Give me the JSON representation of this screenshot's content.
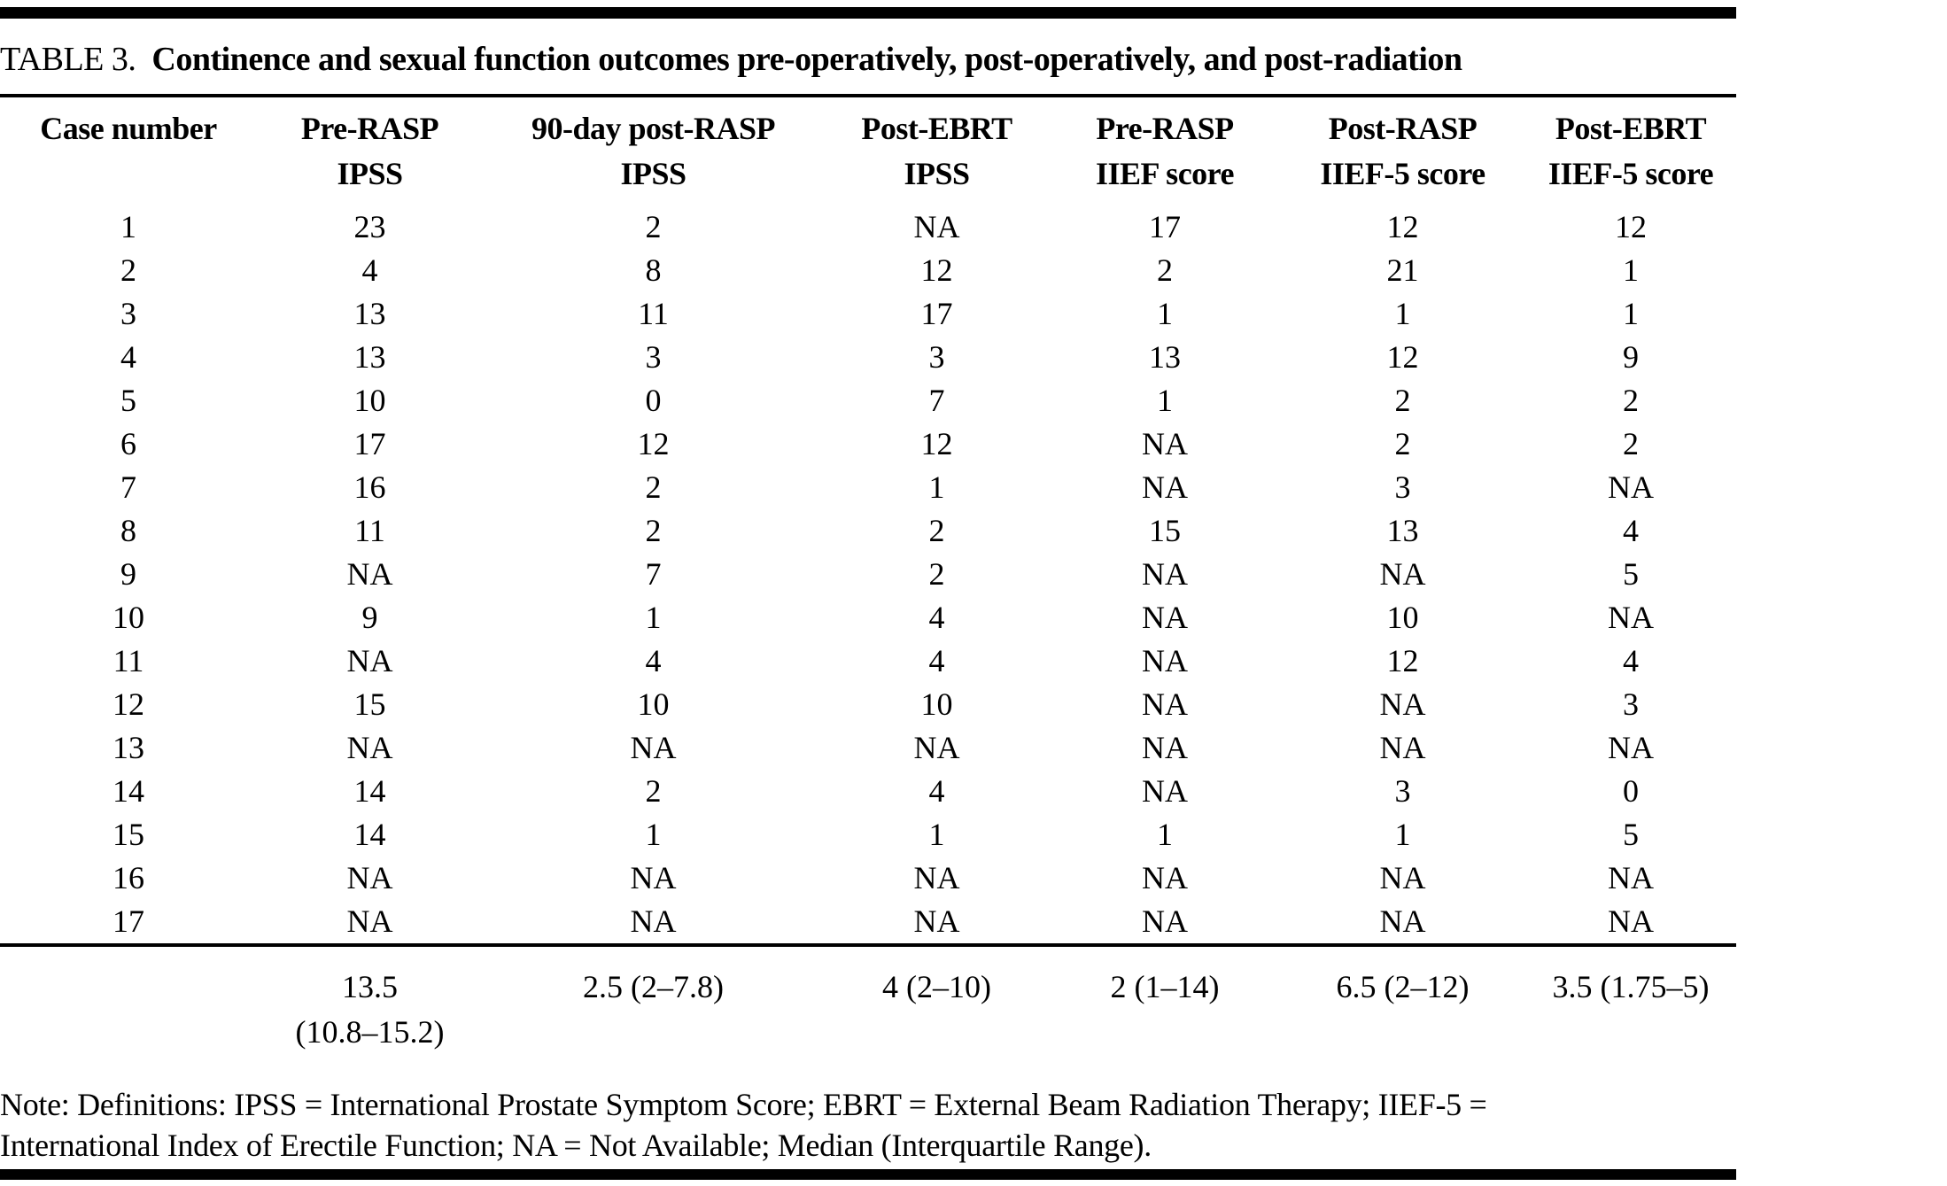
{
  "colors": {
    "background": "#ffffff",
    "ink": "#000000"
  },
  "title": {
    "label": "TABLE 3.",
    "text": "Continence and sexual function outcomes pre-operatively, post-operatively, and post-radiation"
  },
  "chart_data": {
    "type": "table",
    "columns": [
      [
        "Case number",
        ""
      ],
      [
        "Pre-RASP",
        "IPSS"
      ],
      [
        "90-day post-RASP",
        "IPSS"
      ],
      [
        "Post-EBRT",
        "IPSS"
      ],
      [
        "Pre-RASP",
        "IIEF score"
      ],
      [
        "Post-RASP",
        "IIEF-5 score"
      ],
      [
        "Post-EBRT",
        "IIEF-5 score"
      ]
    ],
    "rows": [
      [
        "1",
        "23",
        "2",
        "NA",
        "17",
        "12",
        "12"
      ],
      [
        "2",
        "4",
        "8",
        "12",
        "2",
        "21",
        "1"
      ],
      [
        "3",
        "13",
        "11",
        "17",
        "1",
        "1",
        "1"
      ],
      [
        "4",
        "13",
        "3",
        "3",
        "13",
        "12",
        "9"
      ],
      [
        "5",
        "10",
        "0",
        "7",
        "1",
        "2",
        "2"
      ],
      [
        "6",
        "17",
        "12",
        "12",
        "NA",
        "2",
        "2"
      ],
      [
        "7",
        "16",
        "2",
        "1",
        "NA",
        "3",
        "NA"
      ],
      [
        "8",
        "11",
        "2",
        "2",
        "15",
        "13",
        "4"
      ],
      [
        "9",
        "NA",
        "7",
        "2",
        "NA",
        "NA",
        "5"
      ],
      [
        "10",
        "9",
        "1",
        "4",
        "NA",
        "10",
        "NA"
      ],
      [
        "11",
        "NA",
        "4",
        "4",
        "NA",
        "12",
        "4"
      ],
      [
        "12",
        "15",
        "10",
        "10",
        "NA",
        "NA",
        "3"
      ],
      [
        "13",
        "NA",
        "NA",
        "NA",
        "NA",
        "NA",
        "NA"
      ],
      [
        "14",
        "14",
        "2",
        "4",
        "NA",
        "3",
        "0"
      ],
      [
        "15",
        "14",
        "1",
        "1",
        "1",
        "1",
        "5"
      ],
      [
        "16",
        "NA",
        "NA",
        "NA",
        "NA",
        "NA",
        "NA"
      ],
      [
        "17",
        "NA",
        "NA",
        "NA",
        "NA",
        "NA",
        "NA"
      ]
    ],
    "summary_row": [
      [
        "",
        ""
      ],
      [
        "13.5",
        "(10.8–15.2)"
      ],
      [
        "2.5 (2–7.8)",
        ""
      ],
      [
        "4 (2–10)",
        ""
      ],
      [
        "2 (1–14)",
        ""
      ],
      [
        "6.5 (2–12)",
        ""
      ],
      [
        "3.5 (1.75–5)",
        ""
      ]
    ],
    "note_lines": [
      "Note: Definitions: IPSS = International Prostate Symptom Score; EBRT = External Beam Radiation Therapy; IIEF-5 =",
      "International Index of Erectile Function; NA = Not Available; Median (Interquartile Range)."
    ]
  }
}
